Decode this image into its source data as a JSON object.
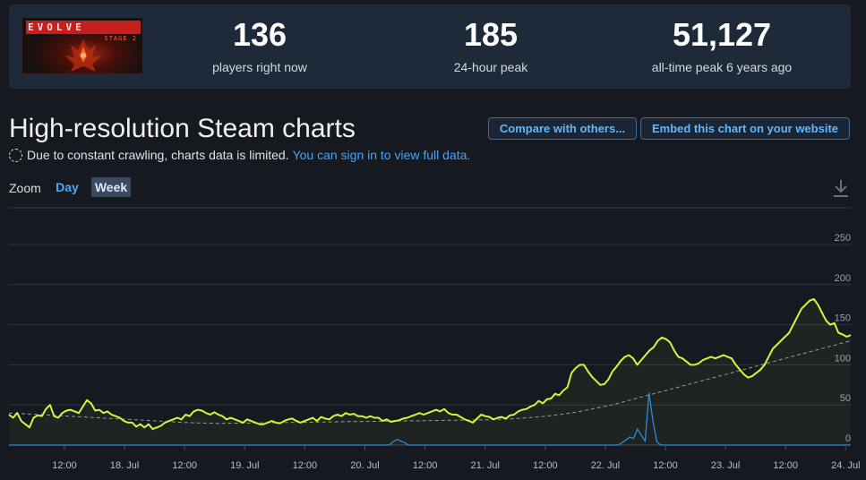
{
  "app": {
    "logo_title": "EVOLVE",
    "logo_subtitle": "STAGE 2"
  },
  "stats": [
    {
      "value": "136",
      "label": "players right now"
    },
    {
      "value": "185",
      "label": "24-hour peak"
    },
    {
      "value": "51,127",
      "label": "all-time peak 6 years ago"
    }
  ],
  "header": {
    "title": "High-resolution Steam charts",
    "compare_label": "Compare with others...",
    "embed_label": "Embed this chart on your website"
  },
  "notice": {
    "text": "Due to constant crawling, charts data is limited.",
    "link": "You can sign in to view full data."
  },
  "zoom": {
    "label": "Zoom",
    "options": [
      "Day",
      "Week"
    ],
    "selected": "Week"
  },
  "icons": {
    "download": "download-icon",
    "notice": "dashed-circle-icon"
  },
  "colors": {
    "players_line": "#d4f53c",
    "secondary_line": "#2a8bd6",
    "trend_line": "#9a9a9a",
    "link": "#3fa6ff"
  },
  "chart_data": {
    "type": "line",
    "yticks": [
      0,
      50,
      100,
      150,
      200,
      250
    ],
    "ylim": [
      0,
      260
    ],
    "xticks": [
      "12:00",
      "18. Jul",
      "12:00",
      "19. Jul",
      "12:00",
      "20. Jul",
      "12:00",
      "21. Jul",
      "12:00",
      "22. Jul",
      "12:00",
      "23. Jul",
      "12:00",
      "24. Jul"
    ],
    "grid": true,
    "series": [
      {
        "values": [
          38,
          34,
          40,
          30,
          26,
          22,
          34,
          37,
          36,
          45,
          50,
          36,
          34,
          40,
          43,
          44,
          42,
          40,
          48,
          56,
          52,
          43,
          44,
          40,
          42,
          38,
          36,
          34,
          30,
          28,
          28,
          23,
          26,
          22,
          26,
          20,
          22,
          24,
          28,
          30,
          32,
          34,
          32,
          38,
          36,
          42,
          44,
          43,
          40,
          38,
          41,
          38,
          36,
          32,
          34,
          32,
          30,
          28,
          32,
          30,
          28,
          26,
          26,
          28,
          30,
          28,
          27,
          30,
          32,
          33,
          30,
          28,
          30,
          32,
          34,
          30,
          35,
          33,
          32,
          36,
          38,
          36,
          40,
          38,
          39,
          36,
          36,
          34,
          36,
          34,
          34,
          30,
          32,
          29,
          30,
          31,
          33,
          34,
          36,
          38,
          40,
          38,
          40,
          42,
          44,
          42,
          45,
          40,
          38,
          38,
          35,
          32,
          30,
          28,
          33,
          38,
          36,
          35,
          32,
          34,
          35,
          33,
          37,
          38,
          42,
          44,
          45,
          48,
          50,
          55,
          52,
          57,
          58,
          64,
          62,
          68,
          72,
          90,
          96,
          100,
          100,
          92,
          85,
          80,
          75,
          76,
          82,
          92,
          98,
          105,
          110,
          112,
          108,
          100,
          106,
          112,
          118,
          122,
          130,
          134,
          132,
          128,
          118,
          110,
          108,
          104,
          100,
          100,
          102,
          106,
          108,
          110,
          108,
          110,
          112,
          110,
          108,
          100,
          94,
          88,
          84,
          86,
          90,
          94,
          100,
          110,
          120,
          125,
          130,
          135,
          140,
          150,
          160,
          170,
          175,
          180,
          182,
          175,
          165,
          155,
          150,
          152,
          140,
          138,
          135,
          137
        ]
      },
      {
        "values": [
          0,
          0,
          0,
          0,
          0,
          0,
          0,
          0,
          0,
          0,
          0,
          0,
          0,
          0,
          0,
          0,
          0,
          0,
          0,
          0,
          0,
          0,
          0,
          0,
          0,
          0,
          0,
          0,
          0,
          0,
          0,
          0,
          0,
          0,
          0,
          0,
          0,
          0,
          0,
          0,
          0,
          0,
          0,
          0,
          0,
          0,
          0,
          0,
          0,
          0,
          0,
          0,
          0,
          0,
          0,
          0,
          0,
          0,
          0,
          0,
          0,
          0,
          0,
          0,
          0,
          0,
          0,
          0,
          0,
          0,
          0,
          0,
          0,
          0,
          0,
          0,
          0,
          0,
          0,
          0,
          0,
          0,
          0,
          0,
          0,
          0,
          0,
          0,
          0,
          0,
          0,
          0,
          0,
          0,
          0,
          0,
          0,
          0,
          0,
          4,
          7,
          5,
          3,
          0,
          0,
          0,
          0,
          0,
          0,
          0,
          0,
          0,
          0,
          0,
          0,
          0,
          0,
          0,
          0,
          0,
          0,
          0,
          0,
          0,
          0,
          0,
          0,
          0,
          0,
          0,
          0,
          0,
          0,
          0,
          0,
          0,
          0,
          0,
          0,
          0,
          0,
          0,
          0,
          0,
          0,
          0,
          0,
          0,
          0,
          0,
          0,
          0,
          0,
          0,
          0,
          0,
          0,
          0,
          3,
          6,
          10,
          8,
          20,
          12,
          5,
          65,
          30,
          4,
          0,
          0,
          0,
          0,
          0,
          0,
          0,
          0,
          0,
          0,
          0,
          0,
          0,
          0,
          0,
          0,
          0,
          0,
          0,
          0,
          0,
          0,
          0,
          0,
          0,
          0,
          0,
          0,
          0,
          0,
          0,
          0,
          0,
          0,
          0,
          0,
          0,
          0,
          0,
          0,
          0,
          0,
          0,
          0,
          0,
          0,
          0,
          0,
          0,
          0
        ]
      },
      {
        "values": [
          40,
          39.6,
          39.2,
          38.8,
          38.4,
          38,
          37.6,
          37.2,
          36.8,
          36.4,
          36,
          35.6,
          35.2,
          34.8,
          34.4,
          34,
          33.6,
          33.2,
          32.8,
          32.4,
          32,
          31.6,
          31.2,
          30.8,
          30.4,
          30,
          29.6,
          29.2,
          28.8,
          28.4,
          28,
          27.8,
          27.6,
          27.4,
          27.2,
          27,
          27.1,
          27.2,
          27.3,
          27.4,
          27.5,
          27.6,
          27.7,
          27.8,
          27.9,
          28,
          28.1,
          28.2,
          28.3,
          28.4,
          28.5,
          28.6,
          28.7,
          28.8,
          28.9,
          29,
          29.1,
          29.2,
          29.3,
          29.4,
          29.5,
          29.6,
          29.7,
          29.8,
          29.9,
          30,
          30.1,
          30.2,
          30.3,
          30.4,
          30.5,
          30.6,
          30.7,
          30.8,
          30.9,
          31,
          31.1,
          31.2,
          31.3,
          31.4,
          31.5,
          31.8,
          32.1,
          32.4,
          32.7,
          33,
          33.6,
          34.2,
          34.8,
          35.4,
          36,
          37,
          38,
          39,
          40,
          41,
          42.5,
          44,
          45.5,
          47,
          48.5,
          50,
          52,
          54,
          56,
          58,
          60,
          62,
          64,
          66,
          68,
          70,
          72,
          74,
          76,
          78,
          80,
          82,
          84,
          86,
          88,
          90,
          92,
          94,
          96,
          98,
          100,
          102,
          104,
          106,
          108,
          110,
          112,
          114,
          116,
          118,
          120,
          122,
          124,
          126,
          128,
          130
        ]
      }
    ]
  }
}
